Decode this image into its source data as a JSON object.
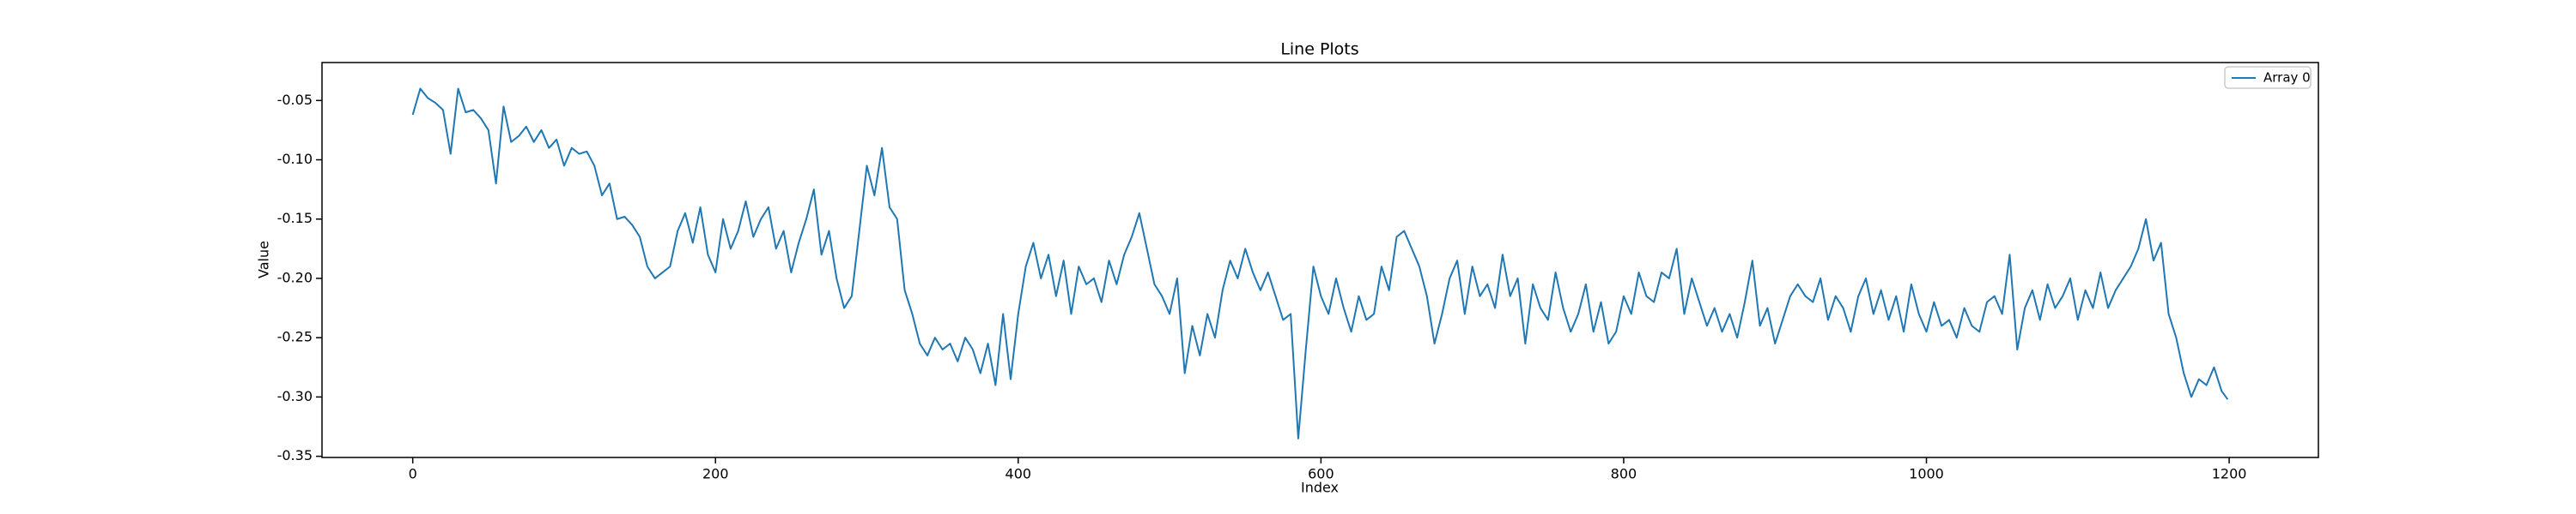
{
  "chart_data": {
    "type": "line",
    "title": "Line Plots",
    "x_label": "Index",
    "y_label": "Value",
    "x": [
      0,
      5,
      10,
      15,
      20,
      25,
      30,
      35,
      40,
      45,
      50,
      55,
      60,
      65,
      70,
      75,
      80,
      85,
      90,
      95,
      100,
      105,
      110,
      115,
      120,
      125,
      130,
      135,
      140,
      145,
      150,
      155,
      160,
      165,
      170,
      175,
      180,
      185,
      190,
      195,
      200,
      205,
      210,
      215,
      220,
      225,
      230,
      235,
      240,
      245,
      250,
      255,
      260,
      265,
      270,
      275,
      280,
      285,
      290,
      295,
      300,
      305,
      310,
      315,
      320,
      325,
      330,
      335,
      340,
      345,
      350,
      355,
      360,
      365,
      370,
      375,
      380,
      385,
      390,
      395,
      400,
      405,
      410,
      415,
      420,
      425,
      430,
      435,
      440,
      445,
      450,
      455,
      460,
      465,
      470,
      475,
      480,
      485,
      490,
      495,
      500,
      505,
      510,
      515,
      520,
      525,
      530,
      535,
      540,
      545,
      550,
      555,
      560,
      565,
      570,
      575,
      580,
      585,
      590,
      595,
      600,
      605,
      610,
      615,
      620,
      625,
      630,
      635,
      640,
      645,
      650,
      655,
      660,
      665,
      670,
      675,
      680,
      685,
      690,
      695,
      700,
      705,
      710,
      715,
      720,
      725,
      730,
      735,
      740,
      745,
      750,
      755,
      760,
      765,
      770,
      775,
      780,
      785,
      790,
      795,
      800,
      805,
      810,
      815,
      820,
      825,
      830,
      835,
      840,
      845,
      850,
      855,
      860,
      865,
      870,
      875,
      880,
      885,
      890,
      895,
      900,
      905,
      910,
      915,
      920,
      925,
      930,
      935,
      940,
      945,
      950,
      955,
      960,
      965,
      970,
      975,
      980,
      985,
      990,
      995,
      1000,
      1005,
      1010,
      1015,
      1020,
      1025,
      1030,
      1035,
      1040,
      1045,
      1050,
      1055,
      1060,
      1065,
      1070,
      1075,
      1080,
      1085,
      1090,
      1095,
      1100,
      1105,
      1110,
      1115,
      1120,
      1125,
      1130,
      1135,
      1140,
      1145,
      1150,
      1155,
      1160,
      1165,
      1170,
      1175,
      1180,
      1185,
      1190,
      1195,
      1199
    ],
    "series": [
      {
        "name": "Array 0",
        "color": "#1f77b4",
        "values": [
          -0.062,
          -0.04,
          -0.048,
          -0.052,
          -0.058,
          -0.095,
          -0.04,
          -0.06,
          -0.058,
          -0.065,
          -0.075,
          -0.12,
          -0.055,
          -0.085,
          -0.08,
          -0.072,
          -0.085,
          -0.075,
          -0.09,
          -0.083,
          -0.105,
          -0.09,
          -0.095,
          -0.093,
          -0.105,
          -0.13,
          -0.12,
          -0.15,
          -0.148,
          -0.155,
          -0.165,
          -0.19,
          -0.2,
          -0.195,
          -0.19,
          -0.16,
          -0.145,
          -0.17,
          -0.14,
          -0.18,
          -0.195,
          -0.15,
          -0.175,
          -0.16,
          -0.135,
          -0.165,
          -0.15,
          -0.14,
          -0.175,
          -0.16,
          -0.195,
          -0.17,
          -0.15,
          -0.125,
          -0.18,
          -0.16,
          -0.2,
          -0.225,
          -0.215,
          -0.16,
          -0.105,
          -0.13,
          -0.09,
          -0.14,
          -0.15,
          -0.21,
          -0.23,
          -0.255,
          -0.265,
          -0.25,
          -0.26,
          -0.255,
          -0.27,
          -0.25,
          -0.26,
          -0.28,
          -0.255,
          -0.29,
          -0.23,
          -0.285,
          -0.23,
          -0.19,
          -0.17,
          -0.2,
          -0.18,
          -0.215,
          -0.185,
          -0.23,
          -0.19,
          -0.205,
          -0.2,
          -0.22,
          -0.185,
          -0.205,
          -0.18,
          -0.165,
          -0.145,
          -0.175,
          -0.205,
          -0.215,
          -0.23,
          -0.2,
          -0.28,
          -0.24,
          -0.265,
          -0.23,
          -0.25,
          -0.21,
          -0.185,
          -0.2,
          -0.175,
          -0.195,
          -0.21,
          -0.195,
          -0.215,
          -0.235,
          -0.23,
          -0.335,
          -0.26,
          -0.19,
          -0.215,
          -0.23,
          -0.2,
          -0.225,
          -0.245,
          -0.215,
          -0.235,
          -0.23,
          -0.19,
          -0.21,
          -0.165,
          -0.16,
          -0.175,
          -0.19,
          -0.215,
          -0.255,
          -0.23,
          -0.2,
          -0.185,
          -0.23,
          -0.19,
          -0.215,
          -0.205,
          -0.225,
          -0.18,
          -0.215,
          -0.2,
          -0.255,
          -0.205,
          -0.225,
          -0.235,
          -0.195,
          -0.225,
          -0.245,
          -0.23,
          -0.205,
          -0.245,
          -0.22,
          -0.255,
          -0.245,
          -0.215,
          -0.23,
          -0.195,
          -0.215,
          -0.22,
          -0.195,
          -0.2,
          -0.175,
          -0.23,
          -0.2,
          -0.22,
          -0.24,
          -0.225,
          -0.245,
          -0.23,
          -0.25,
          -0.22,
          -0.185,
          -0.24,
          -0.225,
          -0.255,
          -0.235,
          -0.215,
          -0.205,
          -0.215,
          -0.22,
          -0.2,
          -0.235,
          -0.215,
          -0.225,
          -0.245,
          -0.215,
          -0.2,
          -0.23,
          -0.21,
          -0.235,
          -0.215,
          -0.245,
          -0.205,
          -0.23,
          -0.245,
          -0.22,
          -0.24,
          -0.235,
          -0.25,
          -0.225,
          -0.24,
          -0.245,
          -0.22,
          -0.215,
          -0.23,
          -0.18,
          -0.26,
          -0.225,
          -0.21,
          -0.235,
          -0.205,
          -0.225,
          -0.215,
          -0.2,
          -0.235,
          -0.21,
          -0.225,
          -0.195,
          -0.225,
          -0.21,
          -0.2,
          -0.19,
          -0.175,
          -0.15,
          -0.185,
          -0.17,
          -0.23,
          -0.25,
          -0.28,
          -0.3,
          -0.285,
          -0.29,
          -0.275,
          -0.295,
          -0.302
        ]
      }
    ],
    "xlim": [
      -59.95,
      1258.95
    ],
    "ylim": [
      -0.351,
      -0.018
    ],
    "xticks": [
      0,
      200,
      400,
      600,
      800,
      1000,
      1200
    ],
    "yticks": [
      -0.35,
      {
        "value": -0.3,
        "label": "-0.30"
      },
      -0.25,
      {
        "value": -0.2,
        "label": "-0.20"
      },
      -0.15,
      {
        "value": -0.1,
        "label": "-0.10"
      },
      -0.05
    ],
    "legend": "upper right"
  }
}
